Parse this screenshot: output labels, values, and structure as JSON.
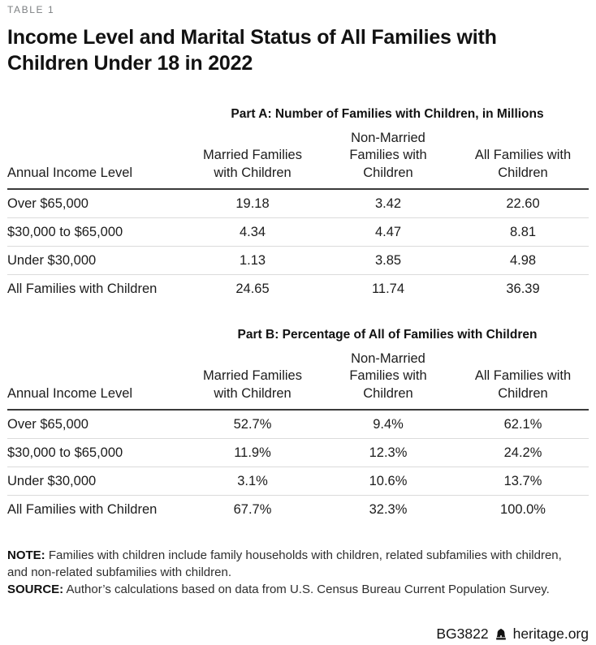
{
  "page": {
    "table_label": "TABLE 1",
    "title": "Income Level and Marital Status of All Families with\nChildren Under 18 in 2022"
  },
  "table": {
    "column_headers": [
      "Annual Income Level",
      "Married Families\nwith Children",
      "Non-Married\nFamilies with\nChildren",
      "All Families with\nChildren"
    ]
  },
  "part_a": {
    "heading": "Part A: Number of Families with Children, in Millions",
    "rows": [
      {
        "label": "Over $65,000",
        "values": [
          "19.18",
          "3.42",
          "22.60"
        ]
      },
      {
        "label": "$30,000 to $65,000",
        "values": [
          "4.34",
          "4.47",
          "8.81"
        ]
      },
      {
        "label": "Under $30,000",
        "values": [
          "1.13",
          "3.85",
          "4.98"
        ]
      },
      {
        "label": "All Families with Children",
        "values": [
          "24.65",
          "11.74",
          "36.39"
        ]
      }
    ]
  },
  "part_b": {
    "heading": "Part B: Percentage of All of Families with Children",
    "rows": [
      {
        "label": "Over $65,000",
        "values": [
          "52.7%",
          "9.4%",
          "62.1%"
        ]
      },
      {
        "label": "$30,000 to $65,000",
        "values": [
          "11.9%",
          "12.3%",
          "24.2%"
        ]
      },
      {
        "label": "Under $30,000",
        "values": [
          "3.1%",
          "10.6%",
          "13.7%"
        ]
      },
      {
        "label": "All Families with Children",
        "values": [
          "67.7%",
          "32.3%",
          "100.0%"
        ]
      }
    ]
  },
  "notes": {
    "note_label": "NOTE:",
    "note_text": " Families with children include family households with children, related subfamilies with children,\nand non-related subfamilies with children.",
    "source_label": "SOURCE:",
    "source_text": " Author’s calculations based on data from U.S. Census Bureau Current Population Survey."
  },
  "footer": {
    "doc_id": "BG3822",
    "site": "heritage.org",
    "logo_icon": "liberty-bell-icon"
  },
  "colors": {
    "text": "#1a1a1a",
    "muted_label": "#7d8083",
    "heavy_rule": "#3a3a3a",
    "light_rule": "#dbdbdb",
    "background": "#ffffff"
  },
  "chart_data": [
    {
      "type": "table",
      "title": "Part A: Number of Families with Children, in Millions",
      "columns": [
        "Annual Income Level",
        "Married Families with Children",
        "Non-Married Families with Children",
        "All Families with Children"
      ],
      "rows": [
        [
          "Over $65,000",
          19.18,
          3.42,
          22.6
        ],
        [
          "$30,000 to $65,000",
          4.34,
          4.47,
          8.81
        ],
        [
          "Under $30,000",
          1.13,
          3.85,
          4.98
        ],
        [
          "All Families with Children",
          24.65,
          11.74,
          36.39
        ]
      ]
    },
    {
      "type": "table",
      "title": "Part B: Percentage of All of Families with Children",
      "columns": [
        "Annual Income Level",
        "Married Families with Children",
        "Non-Married Families with Children",
        "All Families with Children"
      ],
      "rows": [
        [
          "Over $65,000",
          "52.7%",
          "9.4%",
          "62.1%"
        ],
        [
          "$30,000 to $65,000",
          "11.9%",
          "12.3%",
          "24.2%"
        ],
        [
          "Under $30,000",
          "3.1%",
          "10.6%",
          "13.7%"
        ],
        [
          "All Families with Children",
          "67.7%",
          "32.3%",
          "100.0%"
        ]
      ]
    }
  ]
}
